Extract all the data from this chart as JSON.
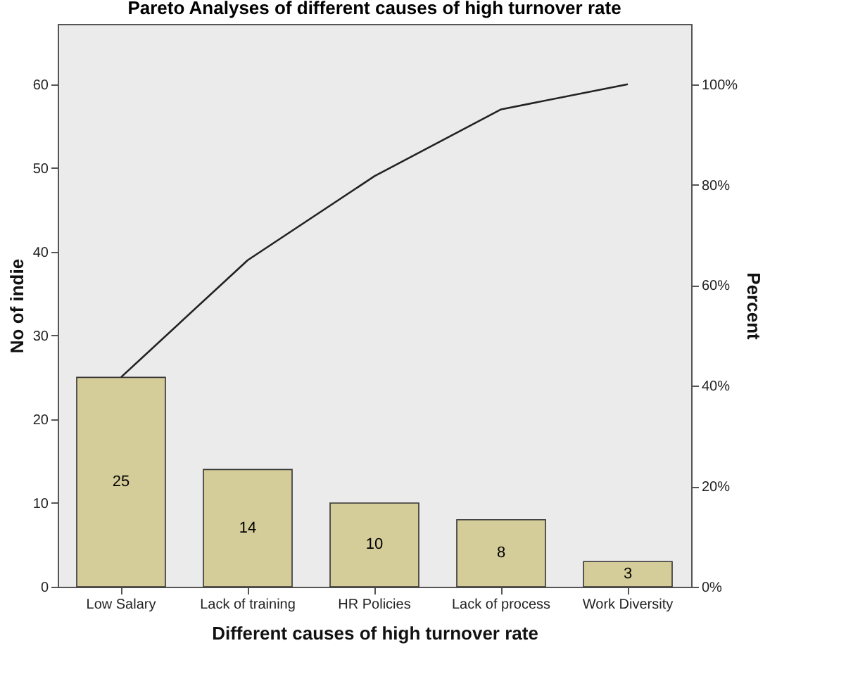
{
  "chart_data": {
    "type": "bar",
    "title": "Pareto Analyses of different causes of high turnover rate",
    "xlabel": "Different causes of high turnover rate",
    "ylabel": "No of indie",
    "y2label": "Percent",
    "categories": [
      "Low Salary",
      "Lack of training",
      "HR Policies",
      "Lack of process",
      "Work Diversity"
    ],
    "series": [
      {
        "color": "#d4cc99",
        "values": [
          25,
          14,
          10,
          8,
          3
        ],
        "value_labels": [
          "25",
          "14",
          "10",
          "8",
          "3"
        ]
      },
      {
        "type": "line",
        "axis": "y2",
        "color": "#222222",
        "values": [
          41.7,
          65,
          81.7,
          95,
          100
        ]
      }
    ],
    "ylim": [
      0,
      67.2
    ],
    "yticks": [
      0,
      10,
      20,
      30,
      40,
      50,
      60
    ],
    "y2lim": [
      0,
      112
    ],
    "y2ticks": [
      {
        "value": 0,
        "label": "0%"
      },
      {
        "value": 20,
        "label": "20%"
      },
      {
        "value": 40,
        "label": "40%"
      },
      {
        "value": 60,
        "label": "60%"
      },
      {
        "value": 80,
        "label": "80%"
      },
      {
        "value": 100,
        "label": "100%"
      }
    ],
    "grid": false
  }
}
